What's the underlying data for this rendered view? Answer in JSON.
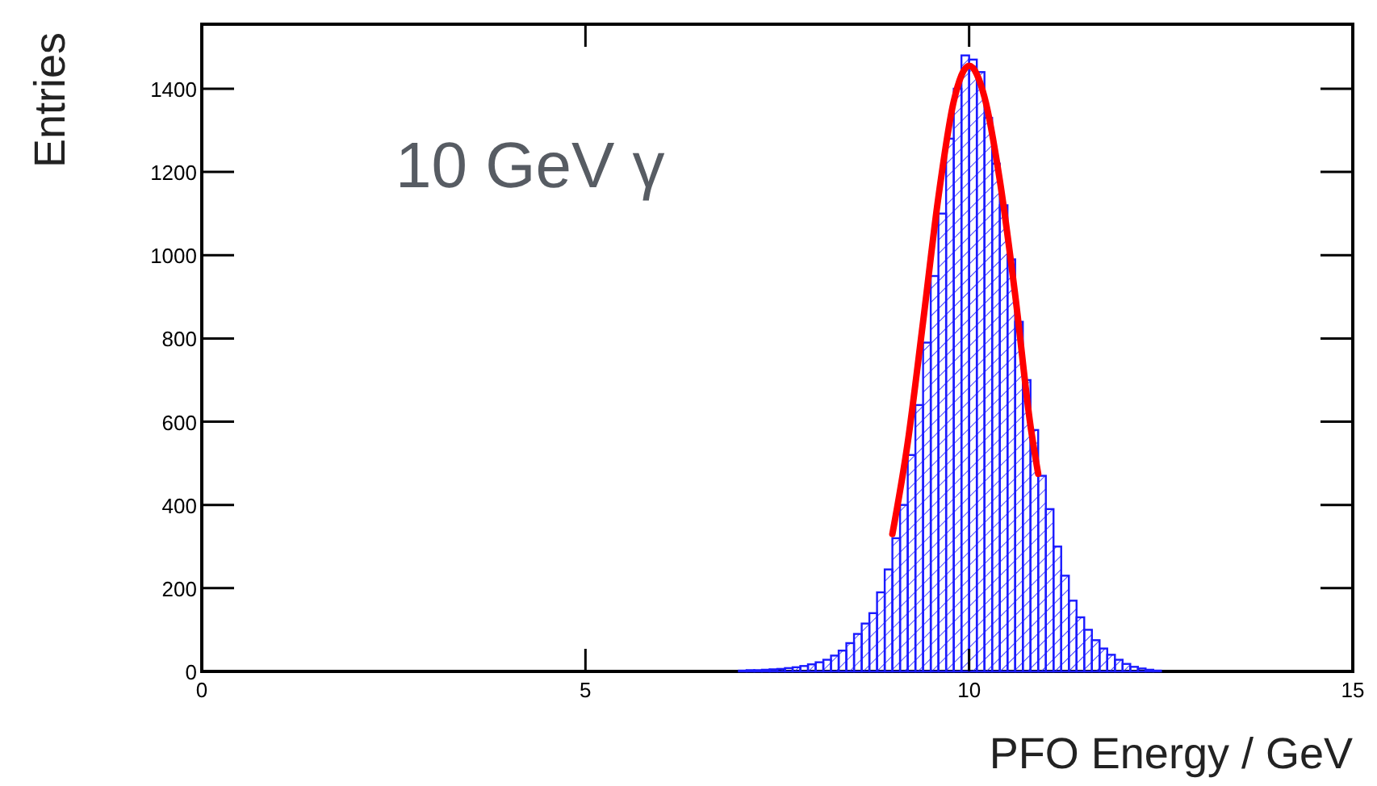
{
  "chart_data": {
    "type": "histogram",
    "xlabel": "PFO Energy / GeV",
    "ylabel": "Entries",
    "annotations": [
      "10 GeV γ"
    ],
    "xlim": [
      0,
      15
    ],
    "xticks": [
      0,
      5,
      10,
      15
    ],
    "ylim": [
      0,
      1555
    ],
    "yticks": [
      0,
      200,
      400,
      600,
      800,
      1000,
      1200,
      1400
    ],
    "bins": [
      7.0,
      7.1,
      7.2,
      7.3,
      7.4,
      7.5,
      7.6,
      7.7,
      7.8,
      7.9,
      8.0,
      8.1,
      8.2,
      8.3,
      8.4,
      8.5,
      8.6,
      8.7,
      8.8,
      8.9,
      9.0,
      9.1,
      9.2,
      9.3,
      9.4,
      9.5,
      9.6,
      9.7,
      9.8,
      9.9,
      10.0,
      10.1,
      10.2,
      10.3,
      10.4,
      10.5,
      10.6,
      10.7,
      10.8,
      10.9,
      11.0,
      11.1,
      11.2,
      11.3,
      11.4,
      11.5,
      11.6,
      11.7,
      11.8,
      11.9,
      12.0,
      12.1,
      12.2,
      12.3,
      12.4,
      12.5
    ],
    "series": [
      {
        "color": "#1a1aff",
        "values": [
          2,
          3,
          3,
          4,
          5,
          6,
          8,
          10,
          13,
          17,
          22,
          28,
          38,
          50,
          68,
          90,
          115,
          140,
          190,
          245,
          320,
          400,
          520,
          640,
          790,
          950,
          1100,
          1280,
          1400,
          1480,
          1470,
          1440,
          1330,
          1220,
          1120,
          990,
          840,
          700,
          580,
          470,
          390,
          300,
          230,
          170,
          130,
          100,
          75,
          55,
          40,
          28,
          18,
          11,
          7,
          4,
          2
        ]
      },
      {
        "type": "line",
        "color": "#ff0000",
        "x": [
          9.0,
          9.2,
          9.4,
          9.6,
          9.8,
          10.0,
          10.2,
          10.4,
          10.6,
          10.8,
          10.9
        ],
        "values": [
          330,
          550,
          840,
          1140,
          1370,
          1455,
          1380,
          1180,
          905,
          590,
          475
        ]
      }
    ]
  }
}
